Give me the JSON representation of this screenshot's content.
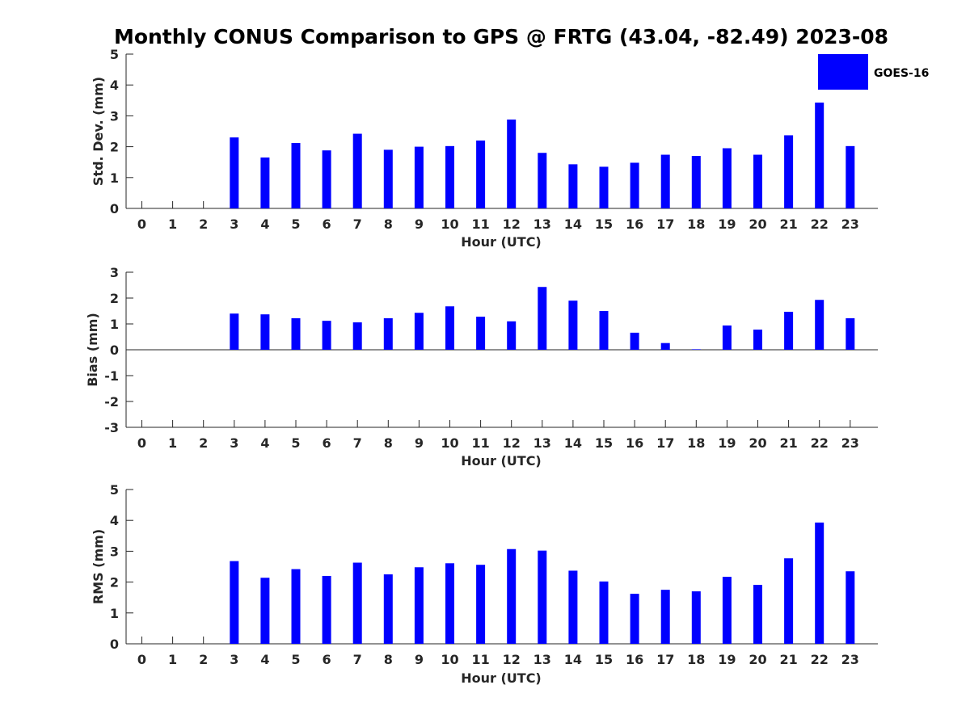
{
  "chart_data": {
    "type": "bar",
    "title": "Monthly CONUS Comparison to GPS @ FRTG (43.04, -82.49) 2023-08",
    "legend": {
      "placement": "top-right",
      "entries": [
        "GOES-16"
      ]
    },
    "series_color": "#0000ff",
    "categories": [
      "0",
      "1",
      "2",
      "3",
      "4",
      "5",
      "6",
      "7",
      "8",
      "9",
      "10",
      "11",
      "12",
      "13",
      "14",
      "15",
      "16",
      "17",
      "18",
      "19",
      "20",
      "21",
      "22",
      "23"
    ],
    "panels": [
      {
        "id": "std",
        "xlabel": "Hour (UTC)",
        "ylabel": "Std. Dev. (mm)",
        "ylim": [
          0,
          5
        ],
        "yticks": [
          "0",
          "1",
          "2",
          "3",
          "4",
          "5"
        ],
        "series": [
          {
            "name": "GOES-16",
            "values": [
              null,
              null,
              null,
              2.3,
              1.65,
              2.12,
              1.88,
              2.42,
              1.9,
              2.0,
              2.02,
              2.2,
              2.88,
              1.8,
              1.43,
              1.35,
              1.48,
              1.74,
              1.7,
              1.95,
              1.74,
              2.37,
              3.43,
              2.02
            ]
          }
        ]
      },
      {
        "id": "bias",
        "xlabel": "Hour (UTC)",
        "ylabel": "Bias (mm)",
        "ylim": [
          -3,
          3
        ],
        "yticks": [
          "3",
          "2",
          "1",
          "0",
          "-1",
          "-2",
          "-3"
        ],
        "series": [
          {
            "name": "GOES-16",
            "values": [
              null,
              null,
              null,
              1.4,
              1.37,
              1.22,
              1.12,
              1.06,
              1.22,
              1.43,
              1.68,
              1.28,
              1.1,
              2.43,
              1.9,
              1.5,
              0.66,
              0.26,
              0.02,
              0.94,
              0.78,
              1.47,
              1.93,
              1.22
            ]
          }
        ]
      },
      {
        "id": "rms",
        "xlabel": "Hour (UTC)",
        "ylabel": "RMS (mm)",
        "ylim": [
          0,
          5
        ],
        "yticks": [
          "0",
          "1",
          "2",
          "3",
          "4",
          "5"
        ],
        "series": [
          {
            "name": "GOES-16",
            "values": [
              null,
              null,
              null,
              2.68,
              2.14,
              2.42,
              2.2,
              2.63,
              2.25,
              2.48,
              2.61,
              2.56,
              3.07,
              3.02,
              2.37,
              2.02,
              1.62,
              1.75,
              1.7,
              2.17,
              1.91,
              2.77,
              3.93,
              2.35
            ]
          }
        ]
      }
    ]
  }
}
